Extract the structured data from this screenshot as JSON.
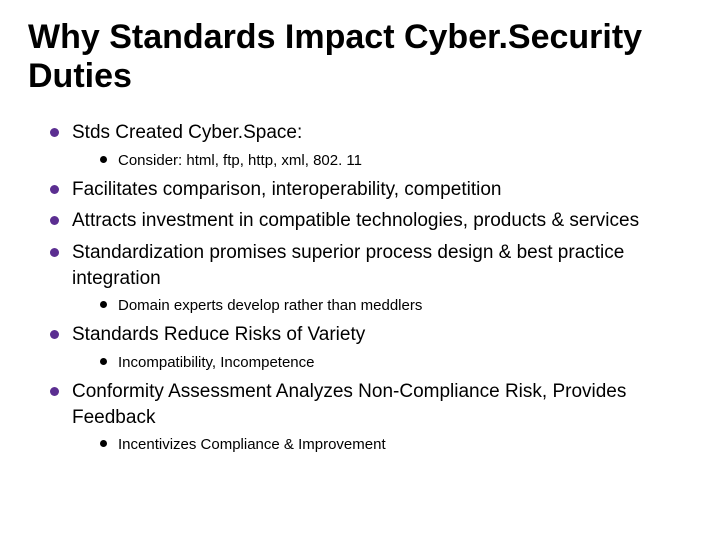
{
  "title": "Why Standards Impact Cyber.Security Duties",
  "colors": {
    "background": "#ffffff",
    "text": "#000000",
    "bullet_level1": "#5b2e91",
    "bullet_level2": "#000000"
  },
  "typography": {
    "title_fontsize": 34,
    "title_fontweight": "bold",
    "level1_fontsize": 19,
    "level2_fontsize": 15,
    "font_family": "Arial"
  },
  "bullets": [
    {
      "text": "Stds Created Cyber.Space:",
      "sub": [
        {
          "text": "Consider: html, ftp, http, xml, 802. 11"
        }
      ]
    },
    {
      "text": "Facilitates comparison, interoperability, competition"
    },
    {
      "text": "Attracts investment in compatible technologies, products & services"
    },
    {
      "text": "Standardization promises superior process design & best practice integration",
      "sub": [
        {
          "text": "Domain experts develop rather than meddlers"
        }
      ]
    },
    {
      "text": "Standards Reduce Risks of Variety",
      "sub": [
        {
          "text": "Incompatibility, Incompetence"
        }
      ]
    },
    {
      "text": "Conformity Assessment Analyzes Non-Compliance Risk, Provides Feedback",
      "sub": [
        {
          "text": "Incentivizes Compliance & Improvement"
        }
      ]
    }
  ]
}
